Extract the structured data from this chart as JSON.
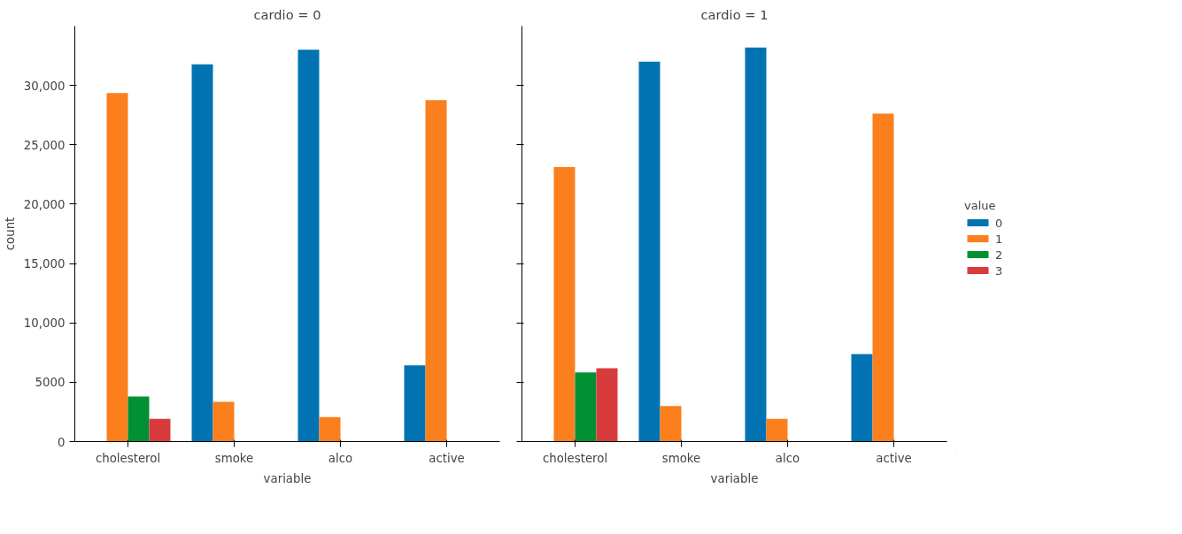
{
  "chart_data": [
    {
      "type": "bar",
      "title": "cardio = 0",
      "xlabel": "variable",
      "ylabel": "count",
      "categories": [
        "cholesterol",
        "smoke",
        "alco",
        "active"
      ],
      "series": [
        {
          "name": "0",
          "color": "#0173b2",
          "values": [
            null,
            31780,
            33000,
            6420
          ]
        },
        {
          "name": "1",
          "color": "#fb7f1c",
          "values": [
            29360,
            3350,
            2060,
            28760
          ]
        },
        {
          "name": "2",
          "color": "#029034",
          "values": [
            3800,
            null,
            null,
            null
          ]
        },
        {
          "name": "3",
          "color": "#d83b3b",
          "values": [
            1920,
            null,
            null,
            null
          ]
        }
      ],
      "ylim": [
        0,
        35000
      ],
      "yticks": [
        0,
        {
          "value": 5000,
          "label": "5000"
        },
        {
          "value": 10000,
          "label": "10,000"
        },
        {
          "value": 15000,
          "label": "15,000"
        },
        {
          "value": 20000,
          "label": "20,000"
        },
        {
          "value": 25000,
          "label": "25,000"
        },
        {
          "value": 30000,
          "label": "30,000"
        }
      ],
      "grid": false,
      "legend": "right",
      "legend_title": "value"
    },
    {
      "type": "bar",
      "title": "cardio = 1",
      "xlabel": "variable",
      "categories": [
        "cholesterol",
        "smoke",
        "alco",
        "active"
      ],
      "series": [
        {
          "name": "0",
          "color": "#0173b2",
          "values": [
            null,
            32000,
            33200,
            7370
          ]
        },
        {
          "name": "1",
          "color": "#fb7f1c",
          "values": [
            23130,
            2990,
            1910,
            27630
          ]
        },
        {
          "name": "2",
          "color": "#029034",
          "values": [
            5830,
            null,
            null,
            null
          ]
        },
        {
          "name": "3",
          "color": "#d83b3b",
          "values": [
            6180,
            null,
            null,
            null
          ]
        }
      ],
      "ylim": [
        0,
        35000
      ],
      "yticks": [
        0,
        5000,
        10000,
        15000,
        20000,
        25000,
        30000
      ],
      "tick_labels": "x",
      "grid": false
    }
  ]
}
